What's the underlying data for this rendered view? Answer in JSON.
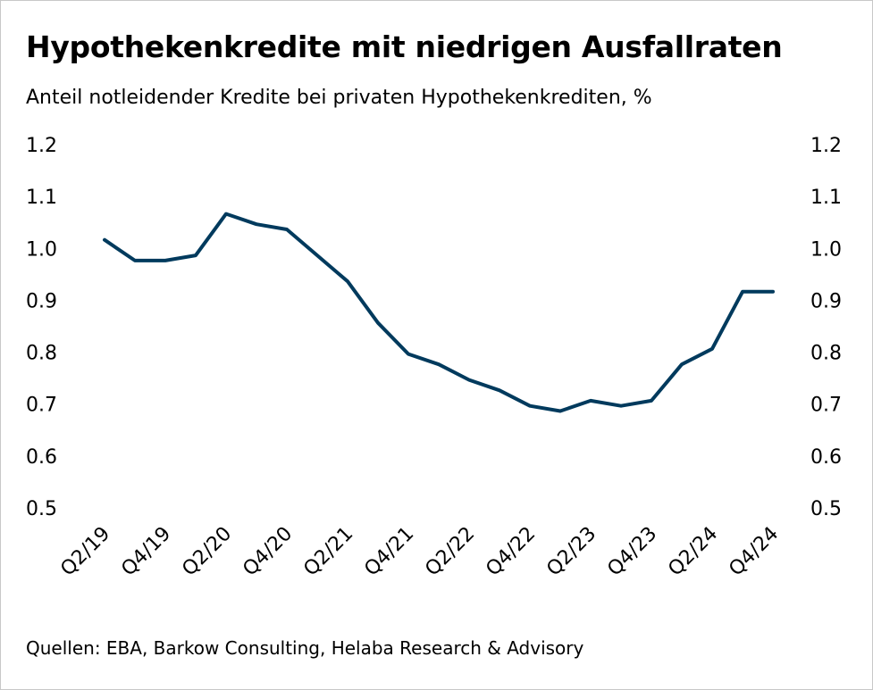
{
  "title": "Hypothekenkredite mit niedrigen Ausfallraten",
  "subtitle": "Anteil notleidender Kredite bei privaten Hypothekenkrediten, %",
  "source": "Quellen: EBA, Barkow Consulting, Helaba Research & Advisory",
  "colors": {
    "line": "#003a5d"
  },
  "chart_data": {
    "type": "line",
    "title": "Hypothekenkredite mit niedrigen Ausfallraten",
    "subtitle": "Anteil notleidender Kredite bei privaten Hypothekenkrediten, %",
    "xlabel": "",
    "ylabel": "",
    "ylim": [
      0.5,
      1.2
    ],
    "yticks": [
      1.2,
      1.1,
      1.0,
      0.9,
      0.8,
      0.7,
      0.6,
      0.5
    ],
    "ytick_labels": [
      "1.2",
      "1.1",
      "1.0",
      "0.9",
      "0.8",
      "0.7",
      "0.6",
      "0.5"
    ],
    "grid": false,
    "y_axis_sides": "both",
    "categories": [
      "Q2/19",
      "Q3/19",
      "Q4/19",
      "Q1/20",
      "Q2/20",
      "Q3/20",
      "Q4/20",
      "Q1/21",
      "Q2/21",
      "Q3/21",
      "Q4/21",
      "Q1/22",
      "Q2/22",
      "Q3/22",
      "Q4/22",
      "Q1/23",
      "Q2/23",
      "Q3/23",
      "Q4/23",
      "Q1/24",
      "Q2/24",
      "Q3/24",
      "Q4/24"
    ],
    "xtick_labels": [
      "Q2/19",
      "Q4/19",
      "Q2/20",
      "Q4/20",
      "Q2/21",
      "Q4/21",
      "Q2/22",
      "Q4/22",
      "Q2/23",
      "Q4/23",
      "Q2/24",
      "Q4/24"
    ],
    "series": [
      {
        "values": [
          1.02,
          0.98,
          0.98,
          0.99,
          1.07,
          1.05,
          1.04,
          0.99,
          0.94,
          0.86,
          0.8,
          0.78,
          0.75,
          0.73,
          0.7,
          0.69,
          0.71,
          0.7,
          0.71,
          0.78,
          0.81,
          0.92,
          0.92
        ]
      }
    ]
  }
}
